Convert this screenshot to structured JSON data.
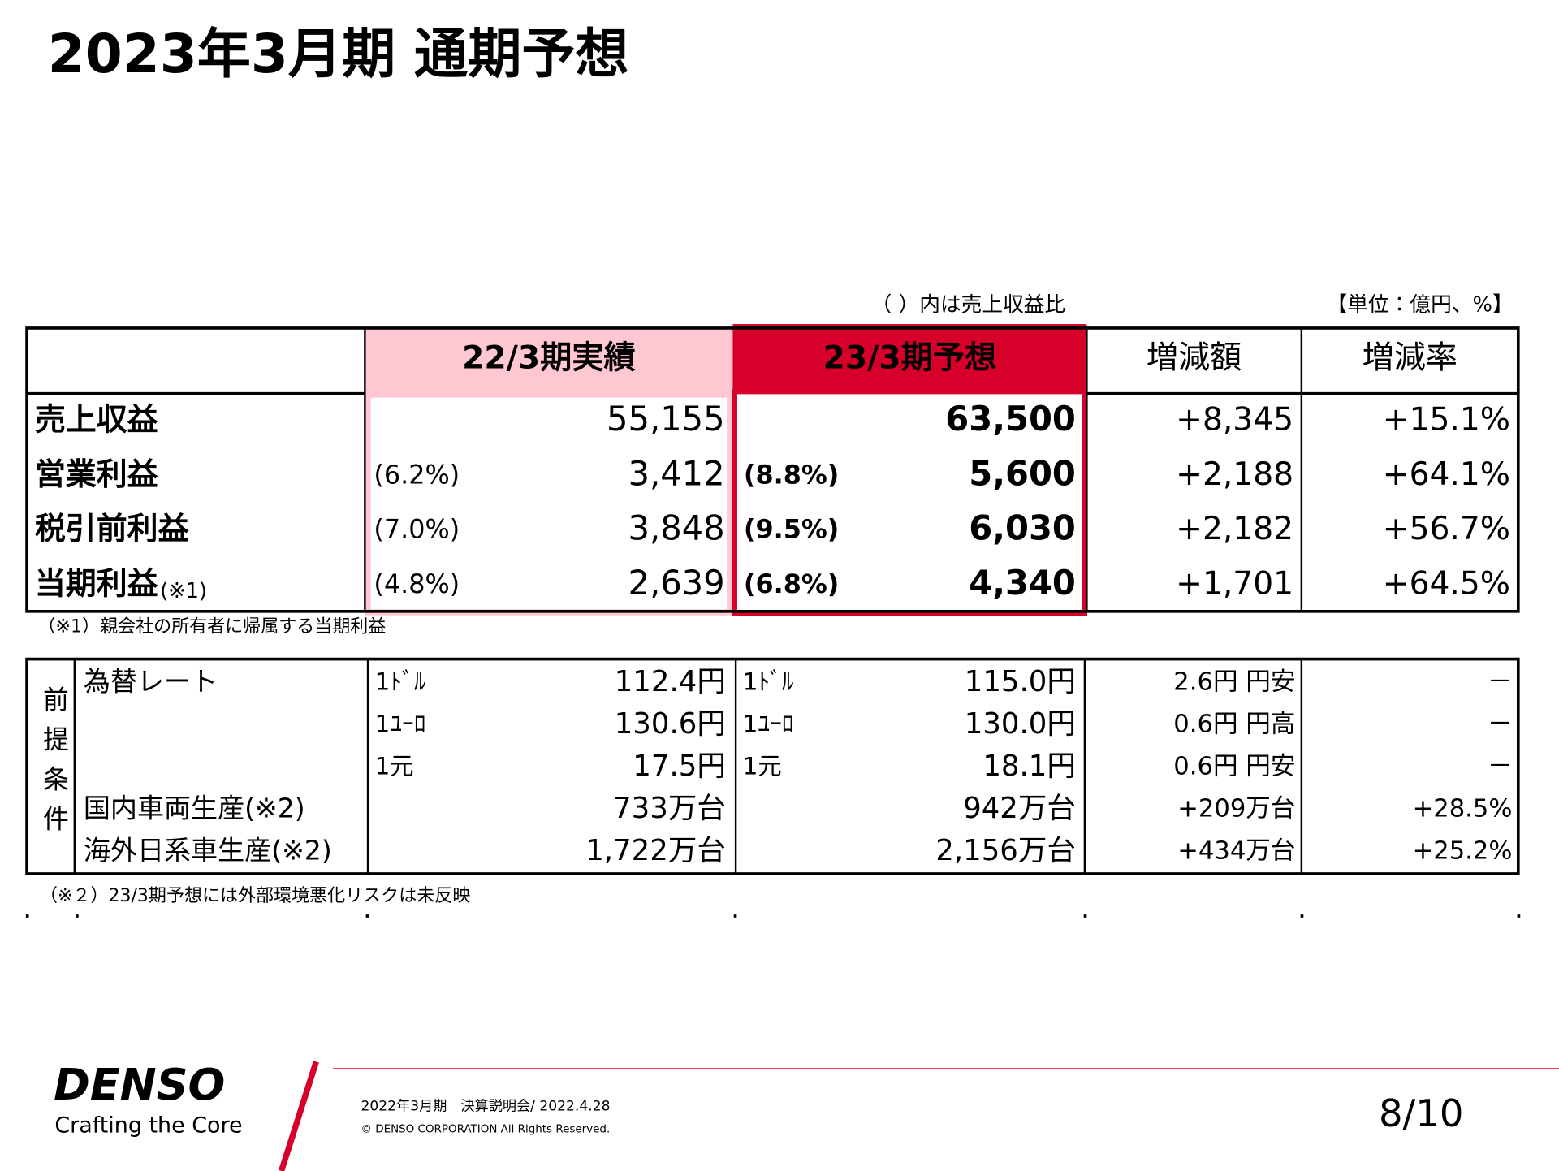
{
  "title": "2023年3月期 通期予想",
  "note_ratio": "（ ）内は売上収益比",
  "unit": "【単位：億円、%】",
  "results_table": {
    "headers": [
      "22/3期実績",
      "23/3期予想",
      "増減額",
      "増減率"
    ],
    "rows": [
      {
        "label": "売上収益",
        "value22": "55,155",
        "value23": "63,500",
        "diff": "+8,345",
        "rate": "+15.1%"
      },
      {
        "label": "営業利益",
        "ratio22": "(6.2%)",
        "value22": "3,412",
        "ratio23": "(8.8%)",
        "value23": "5,600",
        "diff": "+2,188",
        "rate": "+64.1%"
      },
      {
        "label": "税引前利益",
        "ratio22": "(7.0%)",
        "value22": "3,848",
        "ratio23": "(9.5%)",
        "value23": "6,030",
        "diff": "+2,182",
        "rate": "+56.7%"
      },
      {
        "label": "当期利益",
        "label_note": "(※1)",
        "ratio22": "(4.8%)",
        "value22": "2,639",
        "ratio23": "(6.8%)",
        "value23": "4,340",
        "diff": "+1,701",
        "rate": "+64.5%"
      }
    ]
  },
  "footnote1": "（※1）親会社の所有者に帰属する当期利益",
  "assumptions_table": {
    "side_label": "前提条件",
    "rows": [
      {
        "label": "為替レート",
        "unit22": "1ﾄﾞﾙ",
        "value22": "112.4円",
        "unit23": "1ﾄﾞﾙ",
        "value23": "115.0円",
        "diff": "2.6円 円安",
        "rate": "－"
      },
      {
        "unit22": "1ﾕｰﾛ",
        "value22": "130.6円",
        "unit23": "1ﾕｰﾛ",
        "value23": "130.0円",
        "diff": "0.6円 円高",
        "rate": "－"
      },
      {
        "unit22": "1元",
        "value22": "17.5円",
        "unit23": "1元",
        "value23": "18.1円",
        "diff": "0.6円 円安",
        "rate": "－"
      },
      {
        "label": "国内車両生産(※2)",
        "value22": "733万台",
        "value23": "942万台",
        "diff": "+209万台",
        "rate": "+28.5%"
      },
      {
        "label": "海外日系車生産(※2)",
        "value22": "1,722万台",
        "value23": "2,156万台",
        "diff": "+434万台",
        "rate": "+25.2%"
      }
    ]
  },
  "footnote2": "（※２）23/3期予想には外部環境悪化リスクは未反映",
  "footer": {
    "brand": "DENSO",
    "tagline": "Crafting the Core",
    "event": "2022年3月期　決算説明会/ 2022.4.28",
    "copyright": "© DENSO CORPORATION All Rights Reserved.",
    "page": "8/10"
  }
}
